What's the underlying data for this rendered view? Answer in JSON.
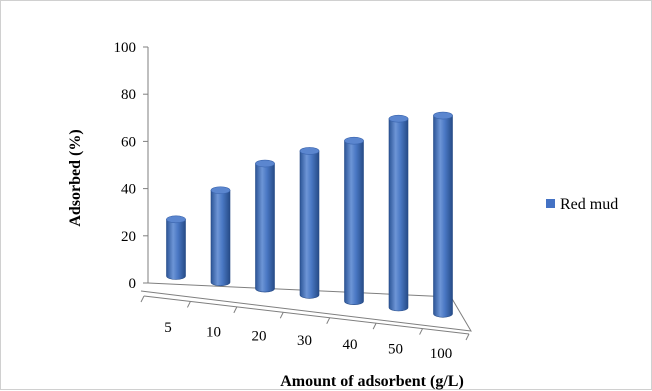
{
  "chart_data": {
    "type": "bar",
    "style": "3d-cylinder",
    "categories": [
      "5",
      "10",
      "20",
      "30",
      "40",
      "50",
      "100"
    ],
    "series": [
      {
        "name": "Red mud",
        "values": [
          24,
          39,
          53,
          61,
          68,
          80,
          84
        ],
        "color": "#4472c4"
      }
    ],
    "xlabel": "Amount of adsorbent (g/L)",
    "ylabel": "Adsorbed (%)",
    "ylim": [
      0,
      100
    ],
    "yticks": [
      "0",
      "20",
      "40",
      "60",
      "80",
      "100"
    ],
    "grid": false,
    "legend": "right"
  }
}
